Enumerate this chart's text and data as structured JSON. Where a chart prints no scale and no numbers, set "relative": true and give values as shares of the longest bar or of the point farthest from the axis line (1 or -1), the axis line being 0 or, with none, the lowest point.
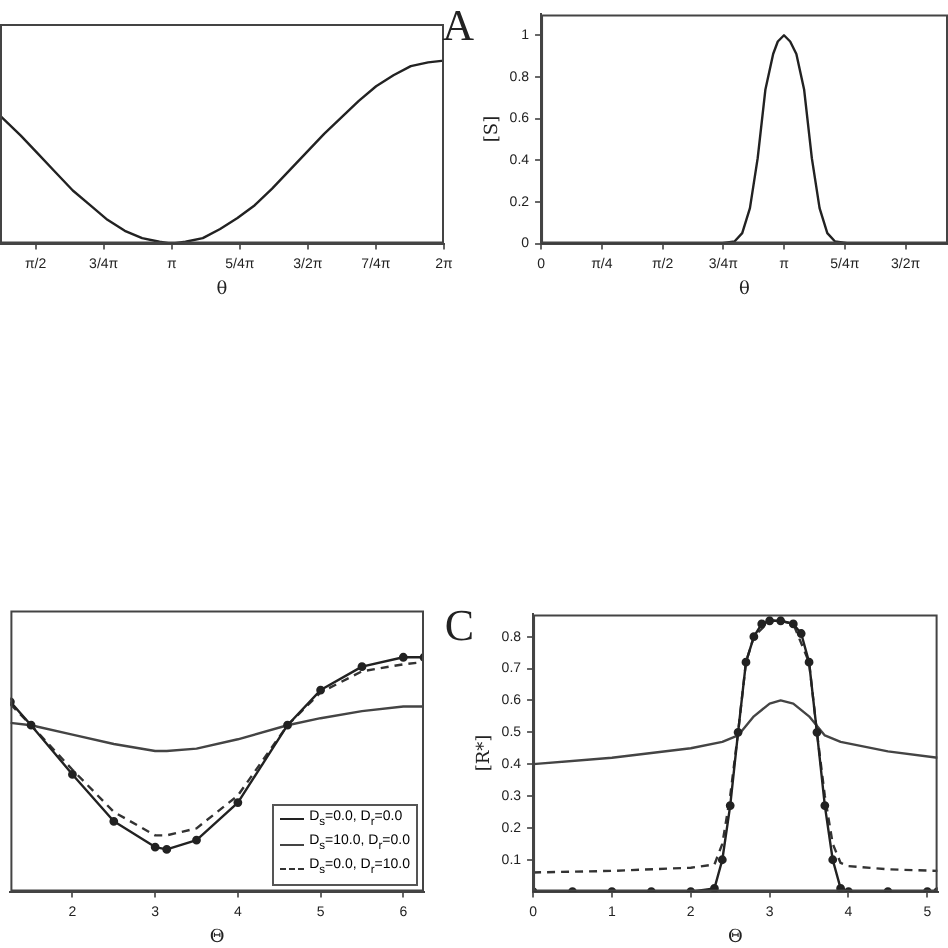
{
  "chart_data": [
    {
      "type": "line",
      "xlabel": "θ",
      "annotations": [
        "A"
      ],
      "relative": true,
      "xlim": [
        1.16,
        6.2832
      ],
      "xticks": [
        {
          "value": 1.5708,
          "label": "π/2"
        },
        {
          "value": 2.3562,
          "label": "3/4π"
        },
        {
          "value": 3.1416,
          "label": "π"
        },
        {
          "value": 3.927,
          "label": "5/4π"
        },
        {
          "value": 4.7124,
          "label": "3/2π"
        },
        {
          "value": 5.4978,
          "label": "7/4π"
        },
        {
          "value": 6.2832,
          "label": "2π"
        }
      ],
      "tick_labels": "x",
      "series": [
        {
          "color": "#222222",
          "x": [
            1.16,
            1.4,
            1.6,
            1.8,
            2.0,
            2.2,
            2.4,
            2.6,
            2.8,
            3.0,
            3.14,
            3.3,
            3.5,
            3.7,
            3.9,
            4.1,
            4.3,
            4.5,
            4.7,
            4.9,
            5.1,
            5.3,
            5.5,
            5.7,
            5.9,
            6.1,
            6.28
          ],
          "values": [
            0.7,
            0.59,
            0.49,
            0.39,
            0.29,
            0.21,
            0.13,
            0.07,
            0.03,
            0.01,
            0,
            0.01,
            0.03,
            0.08,
            0.14,
            0.21,
            0.3,
            0.4,
            0.5,
            0.6,
            0.69,
            0.78,
            0.86,
            0.92,
            0.97,
            0.99,
            1
          ]
        }
      ]
    },
    {
      "type": "line",
      "xlabel": "θ",
      "ylabel": "[S]",
      "xlim": [
        0,
        5.26
      ],
      "ylim": [
        0,
        1.1
      ],
      "xticks": [
        0,
        {
          "value": 0.7854,
          "label": "π/4"
        },
        {
          "value": 1.5708,
          "label": "π/2"
        },
        {
          "value": 2.3562,
          "label": "3/4π"
        },
        {
          "value": 3.1416,
          "label": "π"
        },
        {
          "value": 3.927,
          "label": "5/4π"
        },
        {
          "value": 4.7124,
          "label": "3/2π"
        }
      ],
      "yticks": [
        0,
        0.2,
        0.4,
        0.6,
        0.8,
        1
      ],
      "series": [
        {
          "color": "#222222",
          "x": [
            0,
            0.5,
            1,
            1.5,
            2,
            2.3,
            2.5,
            2.6,
            2.7,
            2.8,
            2.9,
            3.0,
            3.06,
            3.14,
            3.22,
            3.3,
            3.4,
            3.5,
            3.6,
            3.7,
            3.8,
            4.0,
            4.5,
            5.0,
            5.26
          ],
          "values": [
            0,
            0,
            0,
            0,
            0,
            0,
            0.01,
            0.05,
            0.17,
            0.41,
            0.74,
            0.91,
            0.97,
            1,
            0.97,
            0.91,
            0.74,
            0.41,
            0.17,
            0.05,
            0.01,
            0,
            0,
            0,
            0
          ]
        }
      ]
    },
    {
      "type": "line",
      "xlabel": "Θ",
      "annotations": [
        "C"
      ],
      "relative": true,
      "xlim": [
        1.25,
        6.25
      ],
      "xticks": [
        2,
        3,
        4,
        5,
        6
      ],
      "tick_labels": "x",
      "legend": "bottom right",
      "series": [
        {
          "name": "D$_{s}$=0.0, D$_{r}$=0.0",
          "color": "#222222",
          "marker": "circle",
          "line_style": "solid",
          "x": [
            1.25,
            1.5,
            2,
            2.5,
            3,
            3.14,
            3.5,
            4,
            4.6,
            5,
            5.5,
            6,
            6.25
          ],
          "values": [
            0.81,
            0.71,
            0.5,
            0.3,
            0.19,
            0.18,
            0.22,
            0.38,
            0.71,
            0.86,
            0.96,
            1,
            1
          ]
        },
        {
          "name": "D$_{s}$=10.0, D$_{r}$=0.0",
          "color": "#444444",
          "marker": "none",
          "line_style": "solid",
          "x": [
            1.25,
            1.5,
            2,
            2.5,
            3,
            3.14,
            3.5,
            4,
            4.6,
            5,
            5.5,
            6,
            6.25
          ],
          "values": [
            0.72,
            0.71,
            0.67,
            0.63,
            0.6,
            0.6,
            0.61,
            0.65,
            0.71,
            0.74,
            0.77,
            0.79,
            0.79
          ]
        },
        {
          "name": "D$_{s}$=0.0, D$_{r}$=10.0",
          "color": "#333333",
          "marker": "none",
          "line_style": "dashed",
          "x": [
            1.25,
            1.5,
            2,
            2.5,
            3,
            3.14,
            3.5,
            4,
            4.6,
            5,
            5.5,
            6,
            6.25
          ],
          "values": [
            0.8,
            0.71,
            0.52,
            0.34,
            0.24,
            0.24,
            0.27,
            0.41,
            0.71,
            0.85,
            0.94,
            0.97,
            0.98
          ]
        }
      ]
    },
    {
      "type": "line",
      "xlabel": "Θ",
      "ylabel": "[R*]",
      "xlim": [
        0,
        5.13
      ],
      "ylim": [
        0,
        0.87
      ],
      "xticks": [
        0,
        1,
        2,
        3,
        4,
        5
      ],
      "yticks": [
        0.1,
        0.2,
        0.3,
        0.4,
        0.5,
        0.6,
        0.7,
        0.8
      ],
      "series": [
        {
          "color": "#222222",
          "marker": "circle",
          "line_style": "solid",
          "x": [
            0,
            0.5,
            1,
            1.5,
            2,
            2.3,
            2.4,
            2.5,
            2.6,
            2.7,
            2.8,
            2.9,
            3.0,
            3.14,
            3.3,
            3.4,
            3.5,
            3.6,
            3.7,
            3.8,
            3.9,
            4.0,
            4.5,
            5.0,
            5.13
          ],
          "values": [
            0,
            0,
            0,
            0,
            0,
            0.01,
            0.1,
            0.27,
            0.5,
            0.72,
            0.8,
            0.84,
            0.85,
            0.85,
            0.84,
            0.81,
            0.72,
            0.5,
            0.27,
            0.1,
            0.01,
            0,
            0,
            0,
            0
          ]
        },
        {
          "color": "#444444",
          "marker": "none",
          "line_style": "solid",
          "x": [
            0,
            1,
            2,
            2.4,
            2.6,
            2.8,
            3.0,
            3.14,
            3.3,
            3.5,
            3.7,
            3.9,
            4.5,
            5.13
          ],
          "values": [
            0.4,
            0.42,
            0.45,
            0.47,
            0.49,
            0.55,
            0.59,
            0.6,
            0.59,
            0.55,
            0.49,
            0.47,
            0.44,
            0.42
          ]
        },
        {
          "color": "#333333",
          "marker": "none",
          "line_style": "dashed",
          "x": [
            0,
            1,
            2,
            2.3,
            2.4,
            2.5,
            2.6,
            2.7,
            2.8,
            3.0,
            3.14,
            3.3,
            3.5,
            3.6,
            3.7,
            3.8,
            3.9,
            4.0,
            4.5,
            5.13
          ],
          "values": [
            0.06,
            0.065,
            0.075,
            0.085,
            0.15,
            0.3,
            0.5,
            0.72,
            0.8,
            0.85,
            0.85,
            0.84,
            0.72,
            0.5,
            0.3,
            0.15,
            0.09,
            0.08,
            0.07,
            0.065
          ]
        }
      ]
    }
  ]
}
